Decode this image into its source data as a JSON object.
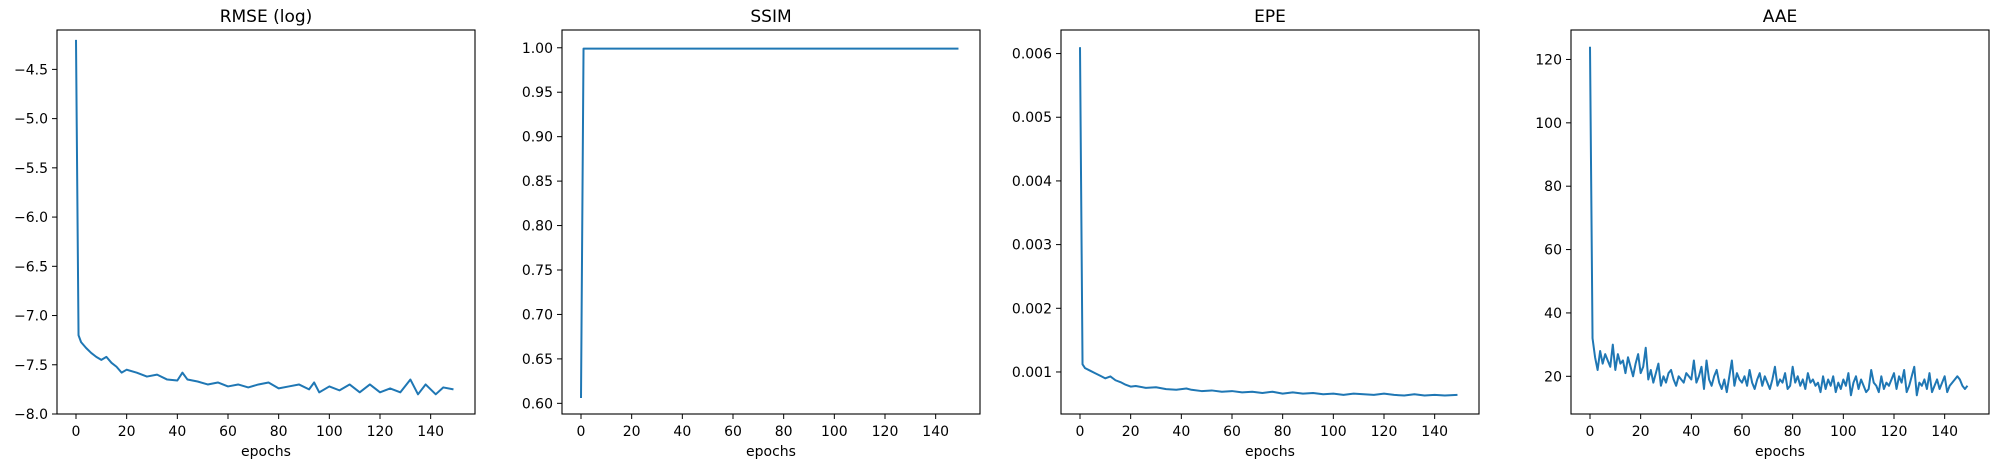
{
  "chart_data": [
    {
      "type": "line",
      "title": "RMSE (log)",
      "xlabel": "epochs",
      "ylabel": "",
      "xlim": [
        -7.5,
        157.5
      ],
      "ylim": [
        -8.0,
        -4.1
      ],
      "xticks": [
        0,
        20,
        40,
        60,
        80,
        100,
        120,
        140
      ],
      "yticks": [
        -8.0,
        -7.5,
        -7.0,
        -6.5,
        -6.0,
        -5.5,
        -5.0,
        -4.5
      ],
      "ytick_labels": [
        "−8.0",
        "−7.5",
        "−7.0",
        "−6.5",
        "−6.0",
        "−5.5",
        "−5.0",
        "−4.5"
      ],
      "series": [
        {
          "color": "#1f77b4",
          "x": [
            0,
            1,
            2,
            4,
            6,
            8,
            10,
            12,
            14,
            16,
            18,
            20,
            24,
            28,
            32,
            36,
            40,
            42,
            44,
            48,
            52,
            56,
            60,
            64,
            68,
            72,
            76,
            80,
            84,
            88,
            92,
            94,
            96,
            100,
            104,
            108,
            112,
            116,
            120,
            124,
            128,
            132,
            135,
            138,
            142,
            145,
            149
          ],
          "y": [
            -4.2,
            -7.2,
            -7.27,
            -7.33,
            -7.38,
            -7.42,
            -7.45,
            -7.42,
            -7.48,
            -7.52,
            -7.58,
            -7.55,
            -7.58,
            -7.62,
            -7.6,
            -7.65,
            -7.66,
            -7.58,
            -7.65,
            -7.67,
            -7.7,
            -7.68,
            -7.72,
            -7.7,
            -7.73,
            -7.7,
            -7.68,
            -7.74,
            -7.72,
            -7.7,
            -7.75,
            -7.68,
            -7.78,
            -7.72,
            -7.76,
            -7.7,
            -7.78,
            -7.7,
            -7.78,
            -7.74,
            -7.78,
            -7.65,
            -7.8,
            -7.7,
            -7.8,
            -7.73,
            -7.75
          ]
        }
      ]
    },
    {
      "type": "line",
      "title": "SSIM",
      "xlabel": "epochs",
      "ylabel": "",
      "xlim": [
        -7.5,
        157.5
      ],
      "ylim": [
        0.588,
        1.02
      ],
      "xticks": [
        0,
        20,
        40,
        60,
        80,
        100,
        120,
        140
      ],
      "yticks": [
        0.6,
        0.65,
        0.7,
        0.75,
        0.8,
        0.85,
        0.9,
        0.95,
        1.0
      ],
      "ytick_labels": [
        "0.60",
        "0.65",
        "0.70",
        "0.75",
        "0.80",
        "0.85",
        "0.90",
        "0.95",
        "1.00"
      ],
      "series": [
        {
          "color": "#1f77b4",
          "x": [
            0,
            1,
            149
          ],
          "y": [
            0.606,
            0.999,
            0.999
          ]
        }
      ]
    },
    {
      "type": "line",
      "title": "EPE",
      "xlabel": "epochs",
      "ylabel": "",
      "xlim": [
        -7.5,
        157.5
      ],
      "ylim": [
        0.00034,
        0.00637
      ],
      "xticks": [
        0,
        20,
        40,
        60,
        80,
        100,
        120,
        140
      ],
      "yticks": [
        0.001,
        0.002,
        0.003,
        0.004,
        0.005,
        0.006
      ],
      "ytick_labels": [
        "0.001",
        "0.002",
        "0.003",
        "0.004",
        "0.005",
        "0.006"
      ],
      "series": [
        {
          "color": "#1f77b4",
          "x": [
            0,
            1,
            2,
            4,
            6,
            8,
            10,
            12,
            14,
            16,
            18,
            20,
            22,
            26,
            30,
            34,
            38,
            42,
            44,
            48,
            52,
            56,
            60,
            64,
            68,
            72,
            76,
            80,
            84,
            88,
            92,
            96,
            100,
            104,
            108,
            112,
            116,
            120,
            124,
            128,
            132,
            136,
            140,
            144,
            149
          ],
          "y": [
            0.0061,
            0.00112,
            0.00106,
            0.00102,
            0.00098,
            0.00094,
            0.0009,
            0.00093,
            0.00087,
            0.00084,
            0.0008,
            0.00077,
            0.00078,
            0.00075,
            0.00076,
            0.00073,
            0.00072,
            0.00074,
            0.00072,
            0.0007,
            0.00071,
            0.00069,
            0.0007,
            0.00068,
            0.00069,
            0.00067,
            0.00069,
            0.00066,
            0.00068,
            0.00066,
            0.00067,
            0.00065,
            0.00066,
            0.00064,
            0.00066,
            0.00065,
            0.00064,
            0.00066,
            0.00064,
            0.00063,
            0.00065,
            0.00063,
            0.00064,
            0.00063,
            0.00064
          ]
        }
      ]
    },
    {
      "type": "line",
      "title": "AAE",
      "xlabel": "epochs",
      "ylabel": "",
      "xlim": [
        -7.5,
        157.5
      ],
      "ylim": [
        8.1,
        129.3
      ],
      "xticks": [
        0,
        20,
        40,
        60,
        80,
        100,
        120,
        140
      ],
      "yticks": [
        20,
        40,
        60,
        80,
        100,
        120
      ],
      "ytick_labels": [
        "20",
        "40",
        "60",
        "80",
        "100",
        "120"
      ],
      "series": [
        {
          "color": "#1f77b4",
          "x": [
            0,
            1,
            2,
            3,
            4,
            5,
            6,
            7,
            8,
            9,
            10,
            11,
            12,
            13,
            14,
            15,
            16,
            17,
            18,
            19,
            20,
            21,
            22,
            23,
            24,
            25,
            26,
            27,
            28,
            29,
            30,
            31,
            32,
            33,
            34,
            35,
            36,
            37,
            38,
            39,
            40,
            41,
            42,
            43,
            44,
            45,
            46,
            47,
            48,
            49,
            50,
            51,
            52,
            53,
            54,
            55,
            56,
            57,
            58,
            59,
            60,
            61,
            62,
            63,
            64,
            65,
            66,
            67,
            68,
            69,
            70,
            71,
            72,
            73,
            74,
            75,
            76,
            77,
            78,
            79,
            80,
            81,
            82,
            83,
            84,
            85,
            86,
            87,
            88,
            89,
            90,
            91,
            92,
            93,
            94,
            95,
            96,
            97,
            98,
            99,
            100,
            101,
            102,
            103,
            104,
            105,
            106,
            107,
            108,
            109,
            110,
            111,
            112,
            113,
            114,
            115,
            116,
            117,
            118,
            119,
            120,
            121,
            122,
            123,
            124,
            125,
            126,
            127,
            128,
            129,
            130,
            131,
            132,
            133,
            134,
            135,
            136,
            137,
            138,
            139,
            140,
            141,
            142,
            143,
            144,
            145,
            146,
            147,
            148,
            149
          ],
          "y": [
            124,
            32,
            26,
            22,
            28,
            24,
            27,
            25,
            23,
            30,
            22,
            27,
            24,
            25,
            21,
            26,
            23,
            20,
            24,
            27,
            21,
            23,
            29,
            19,
            22,
            18,
            21,
            24,
            17,
            20,
            18,
            21,
            22,
            19,
            17,
            20,
            19,
            18,
            21,
            20,
            19,
            25,
            18,
            20,
            23,
            16,
            25,
            19,
            17,
            20,
            22,
            18,
            16,
            19,
            15,
            20,
            25,
            17,
            21,
            19,
            18,
            20,
            17,
            22,
            18,
            16,
            19,
            21,
            17,
            20,
            18,
            16,
            19,
            23,
            17,
            19,
            18,
            21,
            16,
            17,
            23,
            18,
            20,
            17,
            19,
            16,
            21,
            18,
            19,
            17,
            18,
            15,
            20,
            16,
            19,
            17,
            20,
            15,
            18,
            16,
            19,
            17,
            21,
            14,
            18,
            20,
            16,
            19,
            17,
            15,
            16,
            22,
            18,
            17,
            15,
            20,
            16,
            18,
            17,
            19,
            21,
            16,
            20,
            18,
            22,
            15,
            17,
            20,
            23,
            14,
            18,
            17,
            19,
            16,
            21,
            15,
            17,
            19,
            16,
            18,
            20,
            15,
            17,
            18,
            19,
            20,
            19,
            17,
            16,
            17
          ]
        }
      ]
    }
  ]
}
